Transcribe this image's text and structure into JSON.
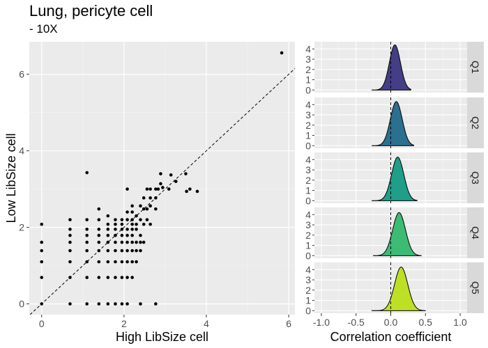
{
  "chart_data": [
    {
      "type": "scatter",
      "title": "Lung, pericyte cell",
      "subtitle": "- 10X",
      "xlabel": "High LibSize cell",
      "ylabel": "Low LibSize cell",
      "xlim": [
        -0.3,
        6.15
      ],
      "ylim": [
        -0.28,
        6.85
      ],
      "x_ticks": [
        0,
        2,
        4,
        6
      ],
      "y_ticks": [
        0,
        2,
        4,
        6
      ],
      "reference_line": {
        "slope": 1,
        "intercept": 0,
        "style": "dashed"
      },
      "grid": true,
      "points": [
        [
          0,
          0
        ],
        [
          0,
          0.69
        ],
        [
          0,
          1.1
        ],
        [
          0,
          1.39
        ],
        [
          0,
          1.61
        ],
        [
          0,
          2.08
        ],
        [
          0.69,
          0
        ],
        [
          0.69,
          0.69
        ],
        [
          0.69,
          1.1
        ],
        [
          0.69,
          1.39
        ],
        [
          0.69,
          1.61
        ],
        [
          0.69,
          1.79
        ],
        [
          0.69,
          1.95
        ],
        [
          0.69,
          2.2
        ],
        [
          1.1,
          0
        ],
        [
          1.1,
          0.69
        ],
        [
          1.1,
          1.1
        ],
        [
          1.1,
          1.39
        ],
        [
          1.1,
          1.61
        ],
        [
          1.1,
          1.79
        ],
        [
          1.1,
          1.95
        ],
        [
          1.1,
          2.2
        ],
        [
          1.1,
          3.43
        ],
        [
          1.39,
          0
        ],
        [
          1.39,
          0.69
        ],
        [
          1.39,
          1.1
        ],
        [
          1.39,
          1.39
        ],
        [
          1.39,
          1.61
        ],
        [
          1.39,
          1.79
        ],
        [
          1.39,
          1.95
        ],
        [
          1.39,
          2.2
        ],
        [
          1.39,
          2.48
        ],
        [
          1.61,
          0
        ],
        [
          1.61,
          0.69
        ],
        [
          1.61,
          1.1
        ],
        [
          1.61,
          1.39
        ],
        [
          1.61,
          1.61
        ],
        [
          1.61,
          1.79
        ],
        [
          1.61,
          1.95
        ],
        [
          1.61,
          2.08
        ],
        [
          1.61,
          2.3
        ],
        [
          1.79,
          0
        ],
        [
          1.79,
          0.69
        ],
        [
          1.79,
          1.1
        ],
        [
          1.79,
          1.39
        ],
        [
          1.79,
          1.61
        ],
        [
          1.79,
          1.79
        ],
        [
          1.79,
          1.95
        ],
        [
          1.79,
          2.08
        ],
        [
          1.79,
          2.2
        ],
        [
          1.95,
          0
        ],
        [
          1.95,
          0.69
        ],
        [
          1.95,
          1.1
        ],
        [
          1.95,
          1.39
        ],
        [
          1.95,
          1.61
        ],
        [
          1.95,
          1.79
        ],
        [
          1.95,
          1.95
        ],
        [
          1.95,
          2.08
        ],
        [
          1.95,
          2.2
        ],
        [
          2.08,
          0
        ],
        [
          2.08,
          0.69
        ],
        [
          2.08,
          1.1
        ],
        [
          2.08,
          1.39
        ],
        [
          2.08,
          1.61
        ],
        [
          2.08,
          1.79
        ],
        [
          2.08,
          1.95
        ],
        [
          2.08,
          2.2
        ],
        [
          2.08,
          2.4
        ],
        [
          2.08,
          3.0
        ],
        [
          2.2,
          0.69
        ],
        [
          2.2,
          1.1
        ],
        [
          2.2,
          1.39
        ],
        [
          2.2,
          1.61
        ],
        [
          2.2,
          1.79
        ],
        [
          2.2,
          1.95
        ],
        [
          2.2,
          2.08
        ],
        [
          2.2,
          2.2
        ],
        [
          2.2,
          2.4
        ],
        [
          2.2,
          2.56
        ],
        [
          2.3,
          1.1
        ],
        [
          2.3,
          1.39
        ],
        [
          2.3,
          1.61
        ],
        [
          2.3,
          1.95
        ],
        [
          2.3,
          2.08
        ],
        [
          2.3,
          2.3
        ],
        [
          2.4,
          0
        ],
        [
          2.4,
          1.39
        ],
        [
          2.4,
          1.61
        ],
        [
          2.4,
          1.79
        ],
        [
          2.4,
          2.2
        ],
        [
          2.4,
          2.56
        ],
        [
          2.48,
          1.61
        ],
        [
          2.48,
          2.08
        ],
        [
          2.48,
          2.48
        ],
        [
          2.48,
          2.77
        ],
        [
          2.56,
          2.2
        ],
        [
          2.56,
          2.48
        ],
        [
          2.56,
          3.0
        ],
        [
          2.64,
          2.08
        ],
        [
          2.64,
          2.56
        ],
        [
          2.64,
          2.77
        ],
        [
          2.64,
          3.0
        ],
        [
          2.77,
          0
        ],
        [
          2.77,
          2.48
        ],
        [
          2.77,
          2.77
        ],
        [
          2.77,
          3.0
        ],
        [
          2.83,
          3.0
        ],
        [
          2.89,
          3.14
        ],
        [
          2.89,
          3.4
        ],
        [
          2.94,
          3.04
        ],
        [
          3.09,
          3.0
        ],
        [
          3.14,
          3.37
        ],
        [
          3.26,
          3.2
        ],
        [
          3.5,
          3.4
        ],
        [
          3.52,
          2.94
        ],
        [
          3.6,
          3.0
        ],
        [
          3.78,
          2.94
        ],
        [
          5.83,
          6.56
        ]
      ]
    },
    {
      "type": "area",
      "subtype": "density-ridges",
      "xlabel": "Correlation coefficient",
      "xlim": [
        -1.1,
        1.1
      ],
      "x_ticks": [
        -1.0,
        -0.5,
        0.0,
        0.5,
        1.0
      ],
      "x_tick_labels": [
        "-1.0",
        "-0.5",
        "0.0",
        "0.5",
        "1.0"
      ],
      "y_ticks": [
        0,
        1,
        2,
        3,
        4
      ],
      "ylim": [
        -0.25,
        4.7
      ],
      "reference_line": {
        "x": 0,
        "style": "dashed"
      },
      "panels": [
        {
          "strip": "Q1",
          "color": "#433e85",
          "mean": 0.06,
          "sd": 0.08,
          "peak": 4.4,
          "range": [
            -0.27,
            0.29
          ]
        },
        {
          "strip": "Q2",
          "color": "#2c6f8e",
          "mean": 0.08,
          "sd": 0.085,
          "peak": 4.3,
          "range": [
            -0.27,
            0.33
          ]
        },
        {
          "strip": "Q3",
          "color": "#1f9e89",
          "mean": 0.1,
          "sd": 0.088,
          "peak": 4.25,
          "range": [
            -0.27,
            0.38
          ]
        },
        {
          "strip": "Q4",
          "color": "#3cbb75",
          "mean": 0.12,
          "sd": 0.092,
          "peak": 4.2,
          "range": [
            -0.25,
            0.44
          ]
        },
        {
          "strip": "Q5",
          "color": "#bddf26",
          "mean": 0.15,
          "sd": 0.095,
          "peak": 4.25,
          "range": [
            -0.27,
            0.5
          ]
        }
      ]
    }
  ]
}
